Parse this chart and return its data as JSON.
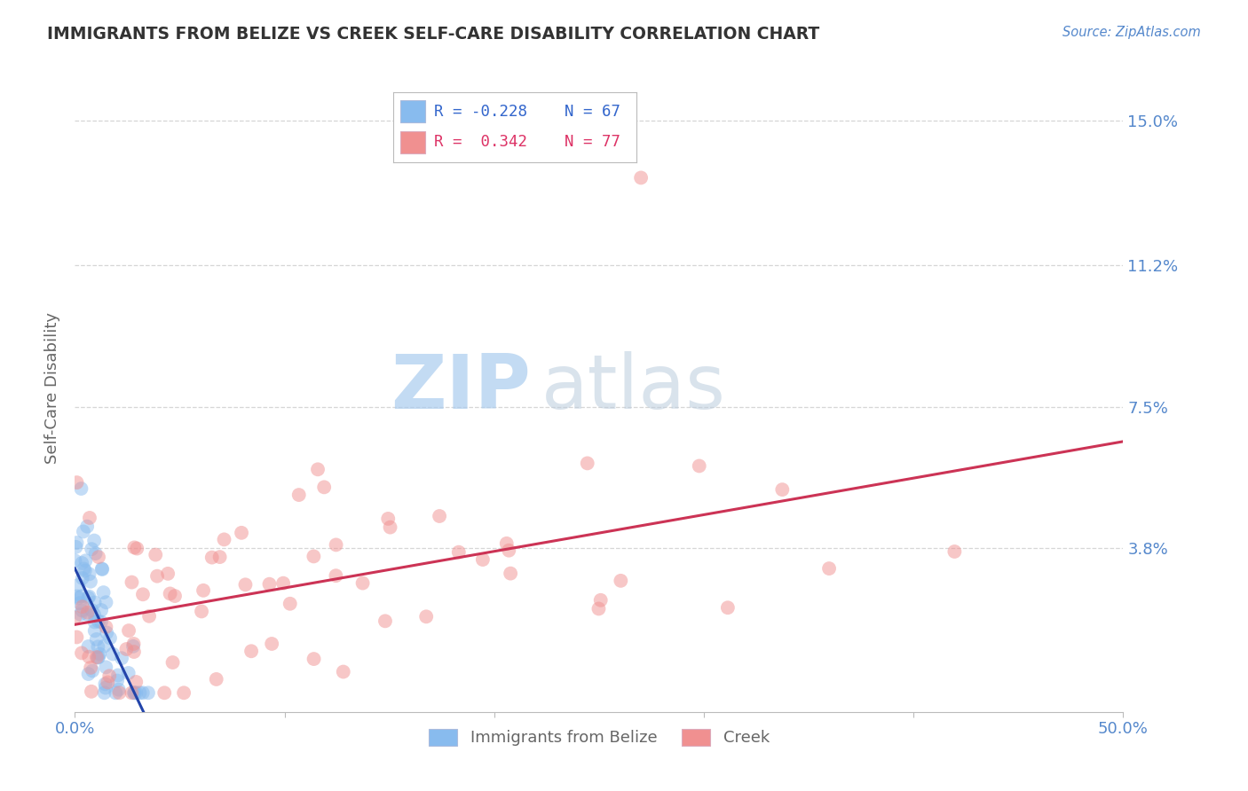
{
  "title": "IMMIGRANTS FROM BELIZE VS CREEK SELF-CARE DISABILITY CORRELATION CHART",
  "source": "Source: ZipAtlas.com",
  "ylabel": "Self-Care Disability",
  "xlim": [
    0.0,
    0.5
  ],
  "ylim": [
    -0.005,
    0.165
  ],
  "ytick_values": [
    0.038,
    0.075,
    0.112,
    0.15
  ],
  "ytick_labels": [
    "3.8%",
    "7.5%",
    "11.2%",
    "15.0%"
  ],
  "grid_color": "#cccccc",
  "background_color": "#ffffff",
  "label1": "Immigrants from Belize",
  "label2": "Creek",
  "R1": -0.228,
  "N1": 67,
  "R2": 0.342,
  "N2": 77,
  "color1": "#88bbee",
  "color2": "#f09090",
  "trend_color1": "#2244aa",
  "trend_color2": "#cc3355",
  "title_color": "#333333",
  "axis_label_color": "#666666",
  "tick_color": "#5588cc",
  "legend_R_color1": "#3366cc",
  "legend_R_color2": "#dd3366",
  "watermark_zip_color": "#aaccee",
  "watermark_atlas_color": "#bbccdd"
}
